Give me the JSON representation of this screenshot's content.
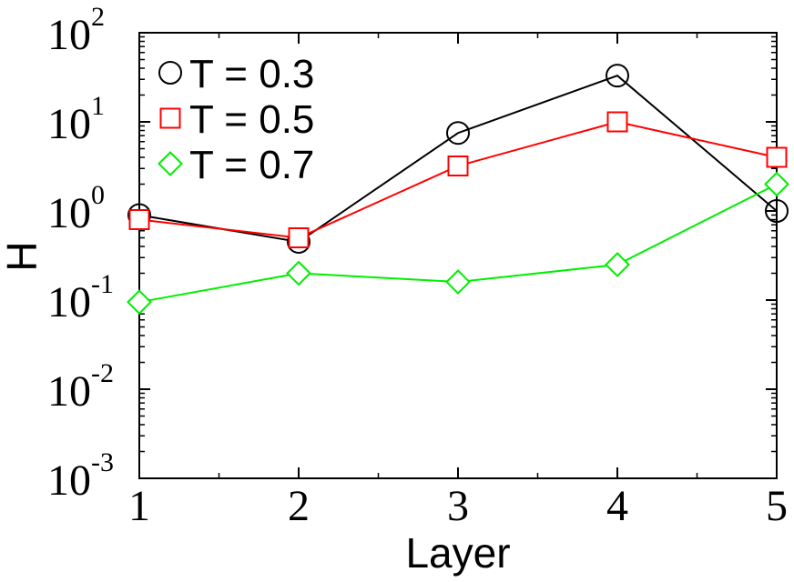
{
  "chart_data": {
    "type": "line",
    "xlabel": "Layer",
    "ylabel": "H",
    "x": [
      1,
      2,
      3,
      4,
      5
    ],
    "xlim": [
      1,
      5
    ],
    "ylim": [
      0.001,
      100
    ],
    "yscale": "log",
    "x_tick_labels": [
      "1",
      "2",
      "3",
      "4",
      "5"
    ],
    "y_tick_labels": [
      {
        "base": "10",
        "exp": "-3"
      },
      {
        "base": "10",
        "exp": "-2"
      },
      {
        "base": "10",
        "exp": "-1"
      },
      {
        "base": "10",
        "exp": "0"
      },
      {
        "base": "10",
        "exp": "1"
      },
      {
        "base": "10",
        "exp": "2"
      }
    ],
    "legend_position": "top-left",
    "grid": false,
    "series": [
      {
        "name": "T = 0.3",
        "marker": "circle",
        "color": "#000000",
        "values": [
          0.9,
          0.45,
          7.5,
          33,
          1.0
        ]
      },
      {
        "name": "T = 0.5",
        "marker": "square",
        "color": "#ff0000",
        "values": [
          0.8,
          0.5,
          3.2,
          10,
          4.0
        ]
      },
      {
        "name": "T = 0.7",
        "marker": "diamond",
        "color": "#00ee00",
        "values": [
          0.095,
          0.2,
          0.16,
          0.25,
          2.0
        ]
      }
    ]
  }
}
